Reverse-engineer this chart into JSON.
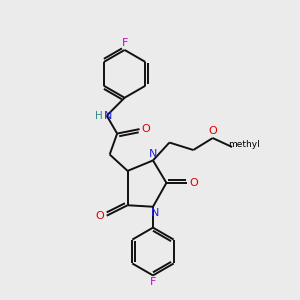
{
  "bg_color": "#ebebeb",
  "atom_colors": {
    "C": "#000000",
    "N": "#2222dd",
    "O": "#dd0000",
    "F": "#cc00cc",
    "H": "#338888"
  },
  "bond_color": "#111111",
  "bond_width": 1.4,
  "figsize": [
    3.0,
    3.0
  ],
  "dpi": 100,
  "xlim": [
    0,
    10
  ],
  "ylim": [
    0,
    10
  ]
}
